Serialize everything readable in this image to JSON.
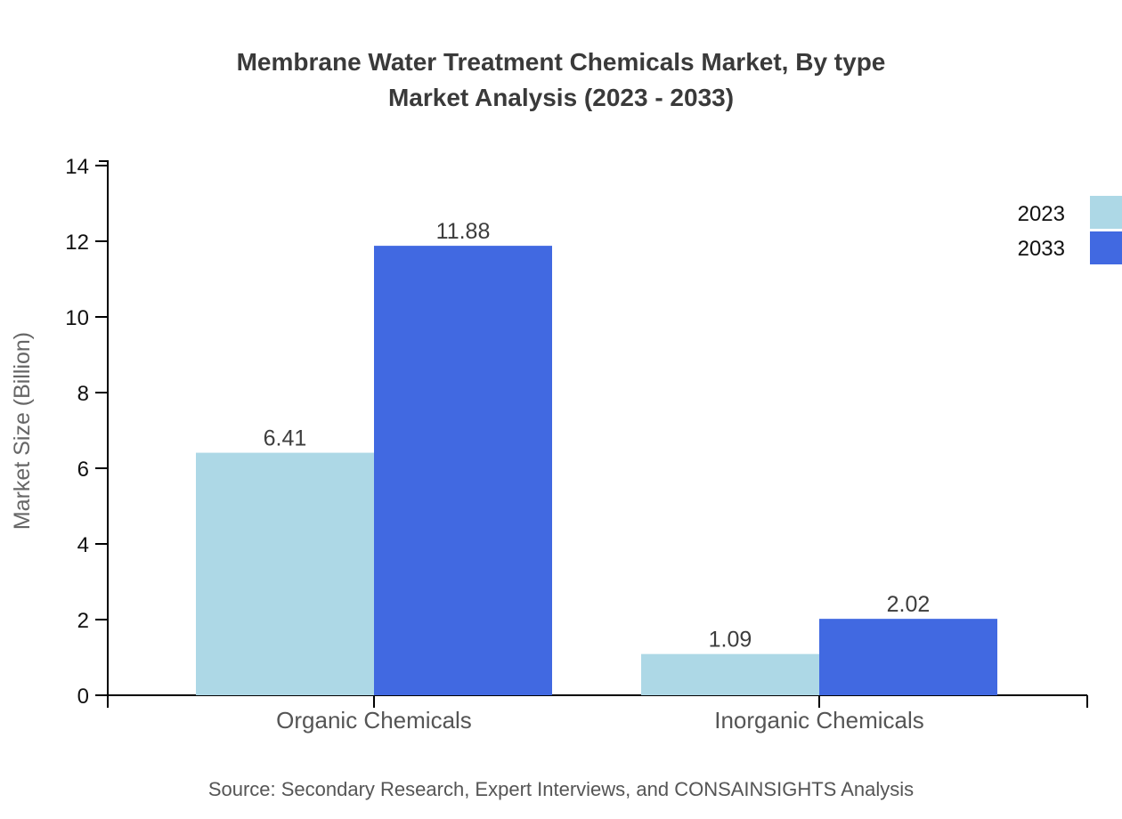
{
  "title": {
    "line1": "Membrane Water Treatment Chemicals Market, By type",
    "line2": "Market Analysis (2023 - 2033)"
  },
  "source": {
    "text": "Source: Secondary Research, Expert Interviews, and CONSAINSIGHTS Analysis"
  },
  "colors": {
    "series_2023": "#ADD8E6",
    "series_2033": "#4169E1",
    "title_text": "#3A3A3A",
    "axis_line": "#000000",
    "tick_label": "#111111",
    "category_label": "#555555",
    "value_label": "#3D3D3D",
    "axis_title": "#666666",
    "source_text": "#555555",
    "background": "#FFFFFF"
  },
  "chart_data": {
    "type": "bar",
    "title": "Membrane Water Treatment Chemicals Market, By type Market Analysis (2023 - 2033)",
    "categories": [
      "Organic Chemicals",
      "Inorganic Chemicals"
    ],
    "series": [
      {
        "name": "2023",
        "color": "#ADD8E6",
        "values": [
          6.41,
          1.09
        ]
      },
      {
        "name": "2033",
        "color": "#4169E1",
        "values": [
          11.88,
          2.02
        ]
      }
    ],
    "value_labels": [
      [
        "6.41",
        "1.09"
      ],
      [
        "11.88",
        "2.02"
      ]
    ],
    "xlabel": "",
    "ylabel": "Market Size (Billion)",
    "ylim": [
      0,
      14
    ],
    "yticks": [
      0,
      2,
      4,
      6,
      8,
      10,
      12,
      14
    ],
    "grid": false,
    "legend": {
      "entries": [
        "2023",
        "2033"
      ],
      "position": "top-right"
    }
  }
}
